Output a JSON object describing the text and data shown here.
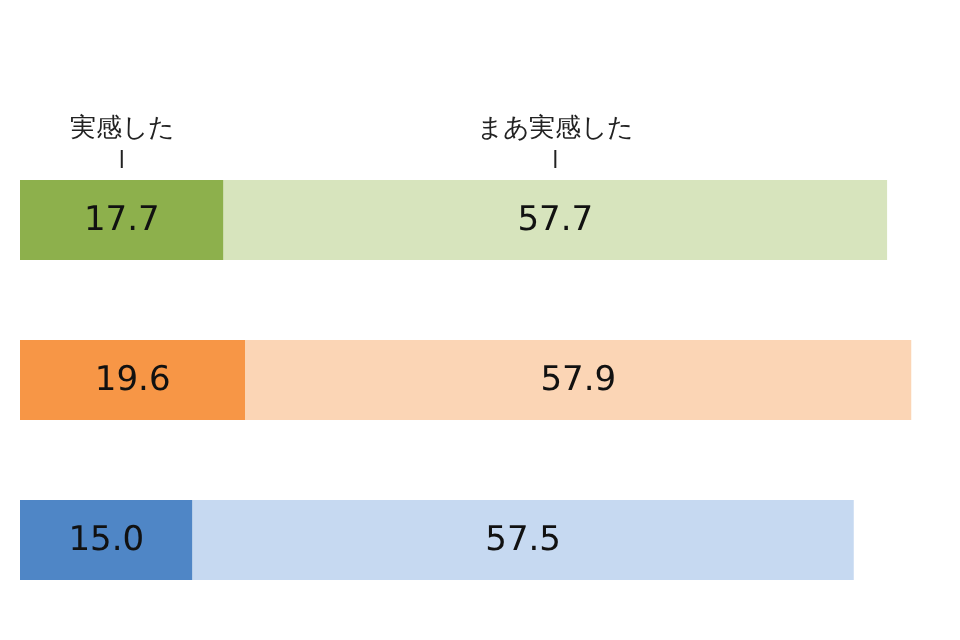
{
  "chart_data": {
    "type": "bar",
    "orientation": "horizontal",
    "stacked": true,
    "categories": [
      null,
      null,
      null
    ],
    "grid": false,
    "legend": "top",
    "series": [
      {
        "name": "実感した",
        "colors": [
          "#8db04c",
          "#f79646",
          "#4f86c6"
        ],
        "values": [
          17.7,
          19.6,
          15.0
        ],
        "value_labels": [
          "17.7",
          "19.6",
          "15.0"
        ]
      },
      {
        "name": "まあ実感した",
        "colors": [
          "#d7e4bd",
          "#fbd5b5",
          "#c6d9f1"
        ],
        "values": [
          57.7,
          57.9,
          57.5
        ],
        "value_labels": [
          "57.7",
          "57.9",
          "57.5"
        ]
      }
    ]
  }
}
